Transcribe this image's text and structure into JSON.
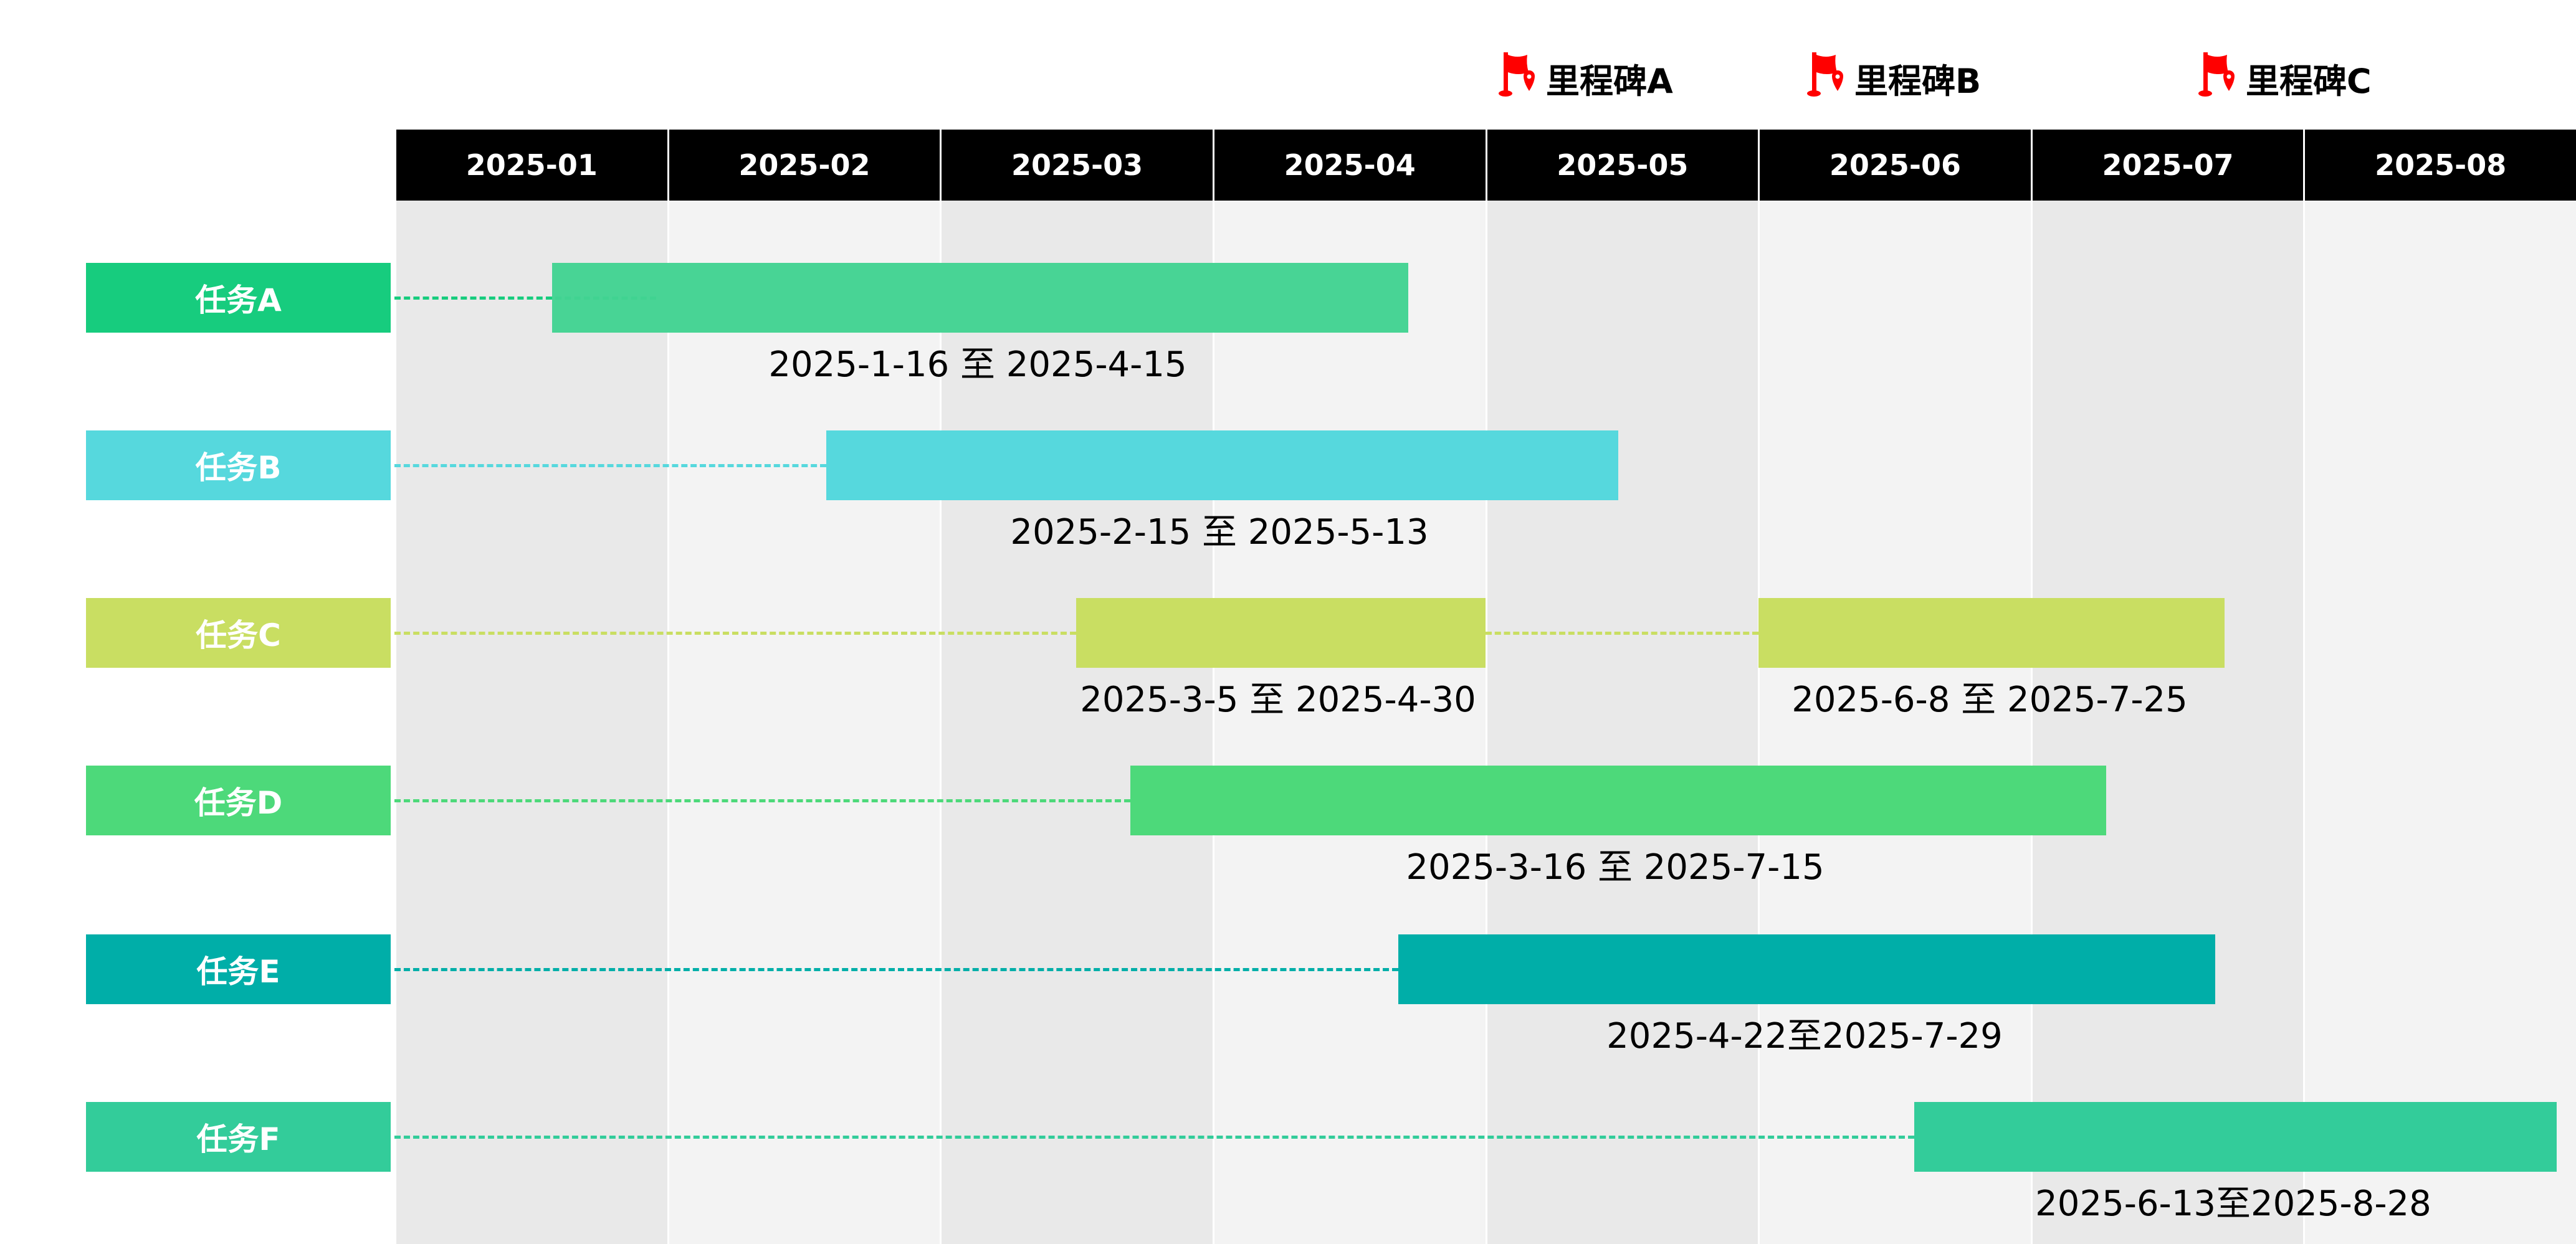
{
  "chart_data": {
    "type": "gantt",
    "months": [
      "2025-01",
      "2025-02",
      "2025-03",
      "2025-04",
      "2025-05",
      "2025-06",
      "2025-07",
      "2025-08"
    ],
    "milestones": [
      {
        "label": "里程碑A",
        "icon": "red-flag-icon",
        "month": "2025-05"
      },
      {
        "label": "里程碑B",
        "icon": "red-flag-icon",
        "month": "2025-06"
      },
      {
        "label": "里程碑C",
        "icon": "red-flag-icon",
        "month": "2025-07"
      }
    ],
    "tasks": [
      {
        "name": "任务A",
        "color": "#17CC7E",
        "bar_color": "#42D392",
        "segments": [
          {
            "start": "2025-01-16",
            "end": "2025-04-15",
            "label": "2025-1-16 至 2025-4-15"
          }
        ]
      },
      {
        "name": "任务B",
        "color": "#56D8DD",
        "bar_color": "#56D8DD",
        "segments": [
          {
            "start": "2025-02-15",
            "end": "2025-05-13",
            "label": "2025-2-15 至 2025-5-13"
          }
        ]
      },
      {
        "name": "任务C",
        "color": "#C9DE62",
        "bar_color": "#C9DE62",
        "segments": [
          {
            "start": "2025-03-05",
            "end": "2025-04-30",
            "label": "2025-3-5 至 2025-4-30"
          },
          {
            "start": "2025-06-08",
            "end": "2025-07-25",
            "label": "2025-6-8 至 2025-7-25"
          }
        ]
      },
      {
        "name": "任务D",
        "color": "#4DD97A",
        "bar_color": "#4DD97A",
        "segments": [
          {
            "start": "2025-03-16",
            "end": "2025-07-15",
            "label": "2025-3-16 至 2025-7-15"
          }
        ]
      },
      {
        "name": "任务E",
        "color": "#00AEA8",
        "bar_color": "#00AEA8",
        "segments": [
          {
            "start": "2025-04-22",
            "end": "2025-07-29",
            "label": "2025-4-22至2025-7-29"
          }
        ]
      },
      {
        "name": "任务F",
        "color": "#33CC9A",
        "bar_color": "#33CC9A",
        "segments": [
          {
            "start": "2025-06-13",
            "end": "2025-08-28",
            "label": "2025-6-13至2025-8-28"
          }
        ]
      }
    ],
    "milestone_color": "#FF0000",
    "header_color": "#000000",
    "column_shades": [
      "#E9E9E9",
      "#F3F3F3"
    ]
  }
}
